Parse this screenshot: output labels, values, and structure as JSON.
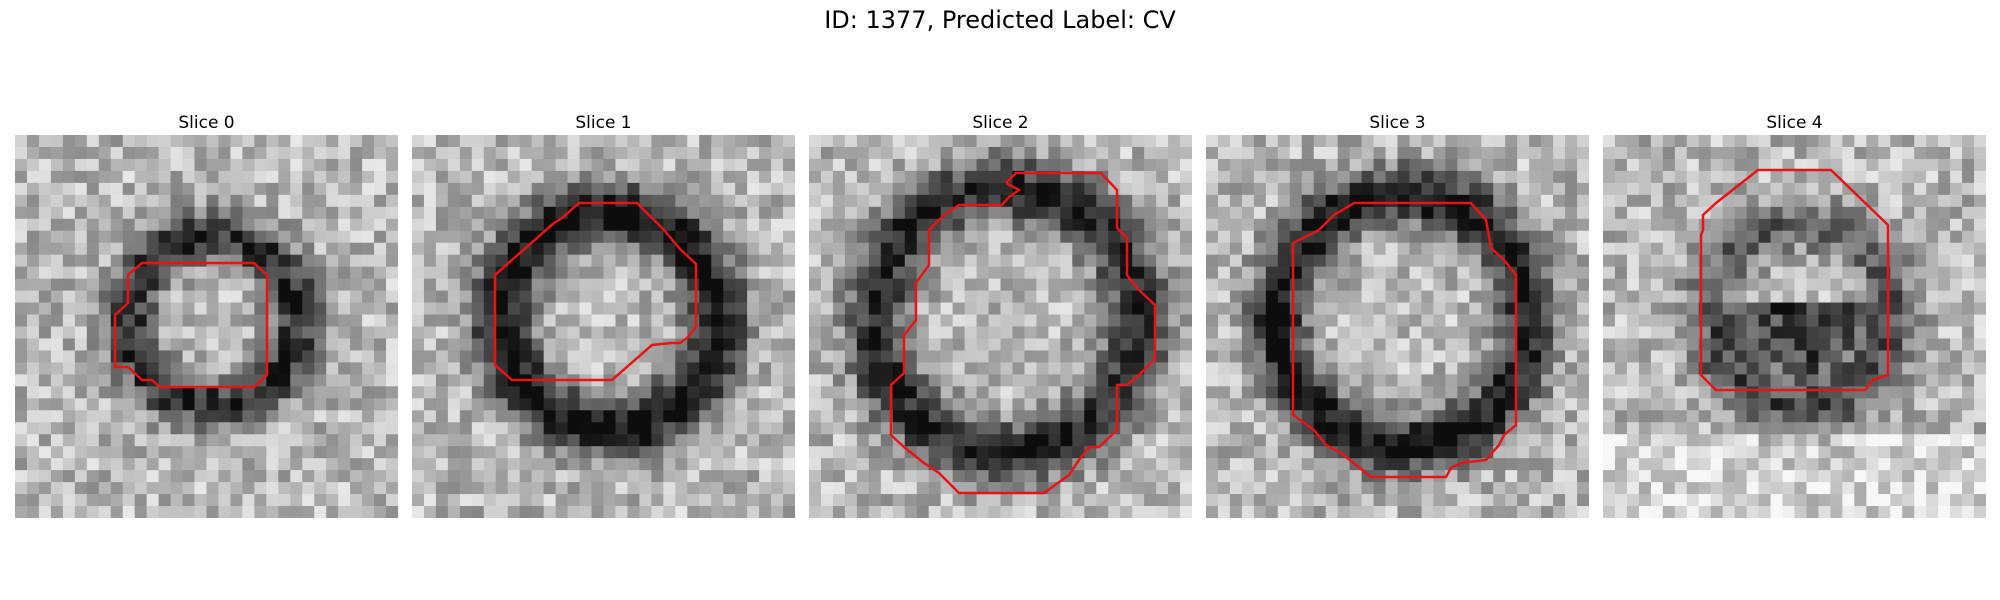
{
  "figure": {
    "title": "ID: 1377, Predicted Label: CV"
  },
  "colors": {
    "contour": "#e81414",
    "background": "#ffffff"
  },
  "panels": [
    {
      "title": "Slice 0",
      "dark_ring": 0.55,
      "inner_dark": 0.0
    },
    {
      "title": "Slice 1",
      "dark_ring": 0.7,
      "inner_dark": 0.0
    },
    {
      "title": "Slice 2",
      "dark_ring": 0.6,
      "inner_dark": 0.0
    },
    {
      "title": "Slice 3",
      "dark_ring": 0.65,
      "inner_dark": 0.0
    },
    {
      "title": "Slice 4",
      "dark_ring": 0.35,
      "inner_dark": 0.75
    }
  ]
}
